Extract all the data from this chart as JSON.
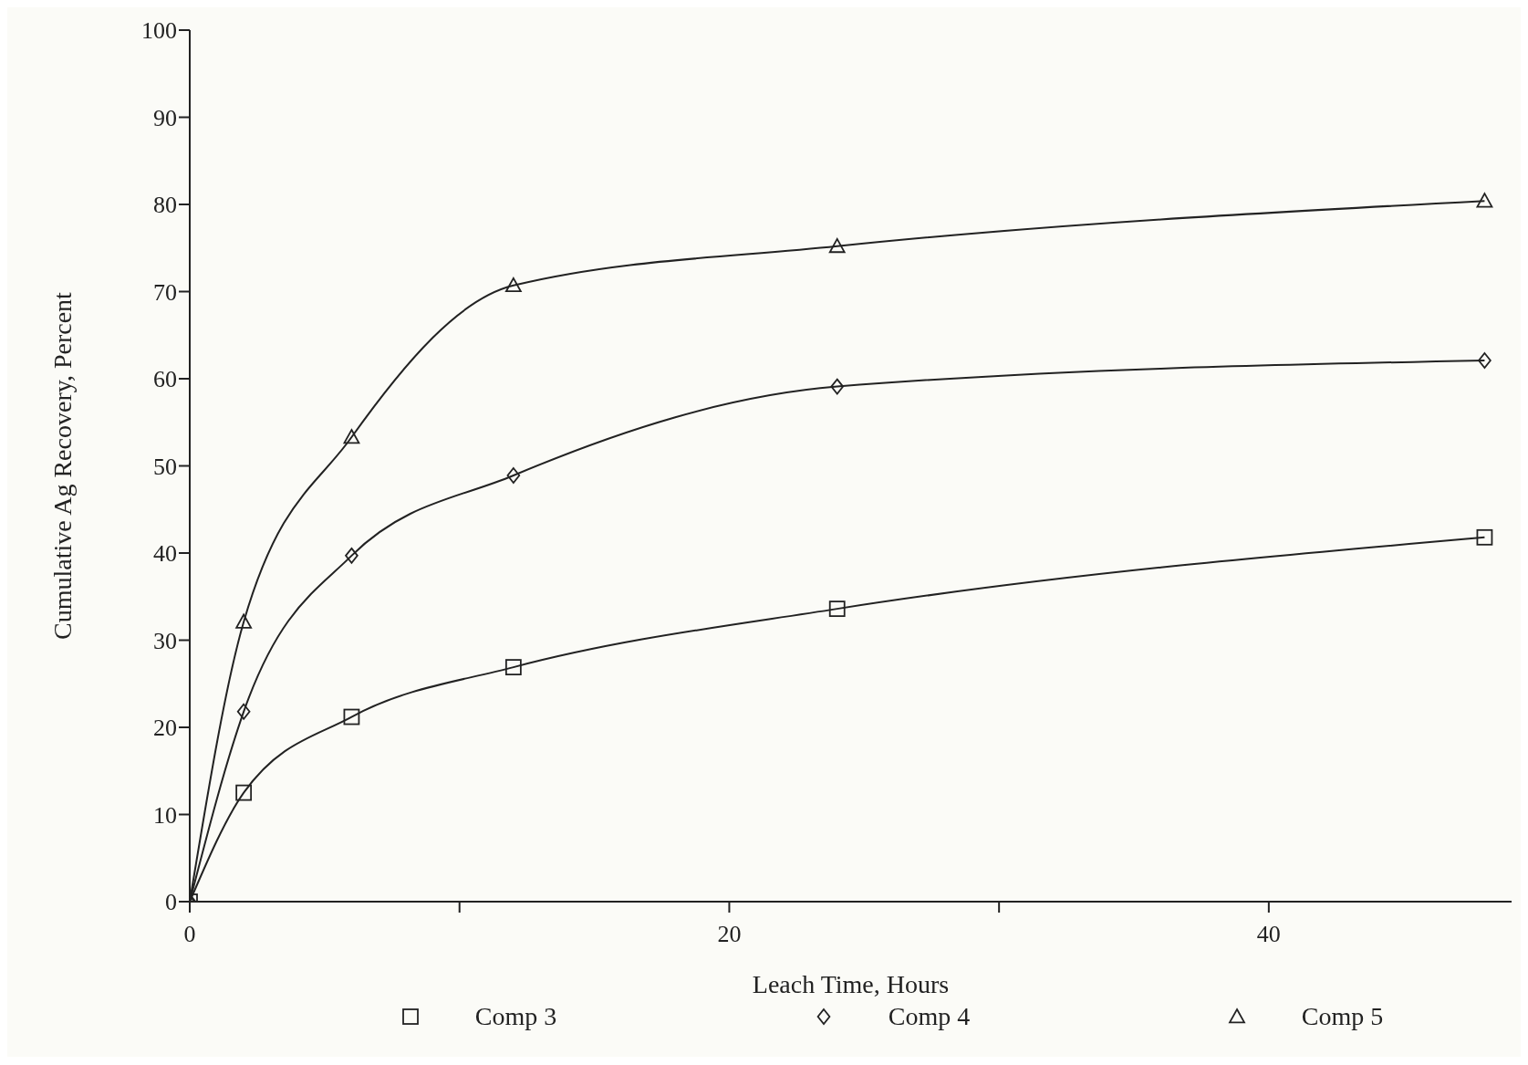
{
  "chart_data": {
    "type": "line",
    "xlabel": "Leach Time, Hours",
    "ylabel": "Cumulative Ag Recovery, Percent",
    "xlim": [
      0,
      49
    ],
    "xticks": [
      0,
      {
        "value": 10,
        "label": null
      },
      20,
      {
        "value": 30,
        "label": null
      },
      40
    ],
    "ylim": [
      0,
      100
    ],
    "yticks": [
      0,
      10,
      20,
      30,
      40,
      50,
      60,
      70,
      80,
      90,
      100
    ],
    "grid": false,
    "legend": "bottom",
    "line_style": "solid",
    "x": [
      0,
      2,
      6,
      12,
      24,
      48
    ],
    "series": [
      {
        "name": "Comp 3",
        "color": "#222222",
        "marker": "square",
        "values": [
          0,
          12.5,
          21.2,
          26.9,
          33.6,
          41.8
        ]
      },
      {
        "name": "Comp 4",
        "color": "#222222",
        "marker": "diamond",
        "values": [
          0,
          21.8,
          39.7,
          48.9,
          59.1,
          62.1
        ]
      },
      {
        "name": "Comp 5",
        "color": "#222222",
        "marker": "triangle",
        "values": [
          0,
          32.1,
          53.3,
          70.7,
          75.2,
          80.4
        ]
      }
    ]
  }
}
